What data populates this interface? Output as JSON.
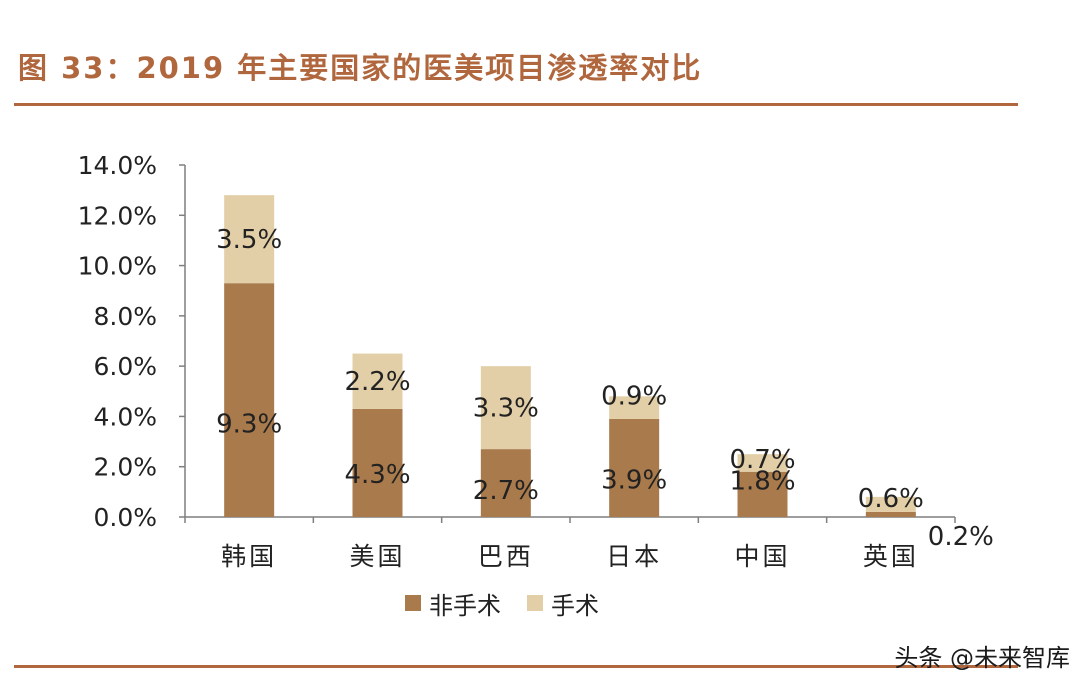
{
  "title": "图 33：2019 年主要国家的医美项目渗透率对比",
  "watermark": "头条 @未来智库",
  "colors": {
    "accent": "#b1673e",
    "non_surgical": "#a97a4c",
    "surgical": "#e3cfa7",
    "axis": "#7f7f7f"
  },
  "chart_data": {
    "type": "bar",
    "stacked": true,
    "title": "",
    "xlabel": "",
    "ylabel": "",
    "ylim": [
      0,
      14
    ],
    "y_ticks": [
      "0.0%",
      "2.0%",
      "4.0%",
      "6.0%",
      "8.0%",
      "10.0%",
      "12.0%",
      "14.0%"
    ],
    "categories": [
      "韩国",
      "美国",
      "巴西",
      "日本",
      "中国",
      "英国"
    ],
    "series": [
      {
        "name": "非手术",
        "values": [
          9.3,
          4.3,
          2.7,
          3.9,
          1.8,
          0.2
        ],
        "labels": [
          "9.3%",
          "4.3%",
          "2.7%",
          "3.9%",
          "1.8%",
          "0.2%"
        ]
      },
      {
        "name": "手术",
        "values": [
          3.5,
          2.2,
          3.3,
          0.9,
          0.7,
          0.6
        ],
        "labels": [
          "3.5%",
          "2.2%",
          "3.3%",
          "0.9%",
          "0.7%",
          "0.6%"
        ]
      }
    ],
    "legend_position": "bottom",
    "grid": false
  }
}
